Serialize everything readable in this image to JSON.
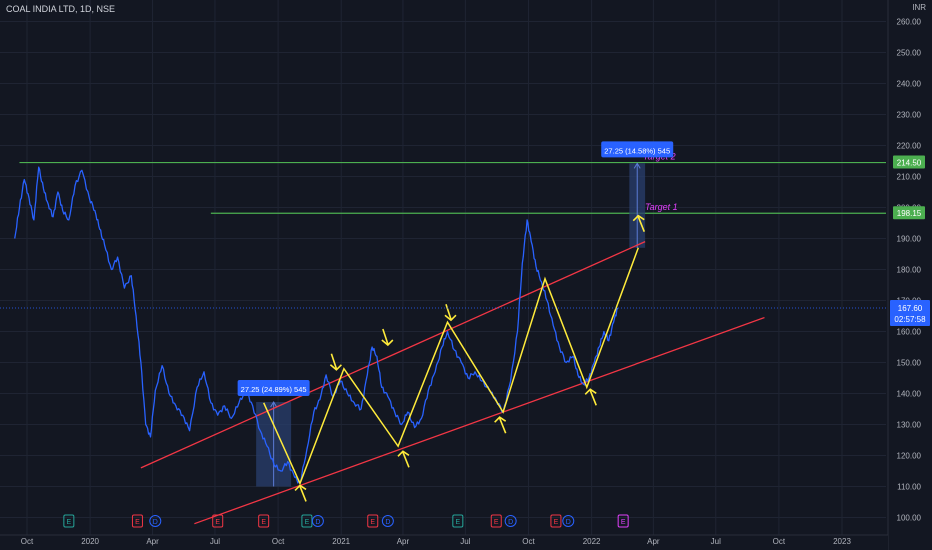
{
  "header": {
    "symbol_title": "COAL INDIA LTD, 1D, NSE",
    "currency": "INR"
  },
  "colors": {
    "background": "#131722",
    "grid": "#1f2433",
    "price_line": "#2962ff",
    "channel": "#f23645",
    "wave": "#ffeb3b",
    "target": "#4caf50",
    "target_label": "#e040fb",
    "measure_fill": "#2a3f6e",
    "badge": "#2962ff",
    "axis_text": "#b2b5be"
  },
  "chart_data": {
    "type": "line",
    "title": "COAL INDIA LTD, 1D, NSE",
    "y_unit": "INR",
    "ylim": [
      97,
      263
    ],
    "y_ticks": [
      100,
      110,
      120,
      130,
      140,
      150,
      160,
      170,
      180,
      190,
      200,
      210,
      220,
      230,
      240,
      250,
      260
    ],
    "y_tick_labels": [
      "100.00",
      "110.00",
      "120.00",
      "130.00",
      "140.00",
      "150.00",
      "160.00",
      "170.00",
      "180.00",
      "190.00",
      "200.00",
      "210.00",
      "220.00",
      "230.00",
      "240.00",
      "250.00",
      "260.00"
    ],
    "x_labels": [
      "Oct",
      "2020",
      "Apr",
      "Jul",
      "Oct",
      "2021",
      "Apr",
      "Jul",
      "Oct",
      "2022",
      "Apr",
      "Jul",
      "Oct",
      "2023"
    ],
    "x_label_dates": [
      "2019-10-01",
      "2020-01-01",
      "2020-04-01",
      "2020-07-01",
      "2020-10-01",
      "2021-01-01",
      "2021-04-01",
      "2021-07-01",
      "2021-10-01",
      "2022-01-01",
      "2022-04-01",
      "2022-07-01",
      "2022-10-01",
      "2023-01-01"
    ],
    "grid": true,
    "series": [
      {
        "points": [
          [
            "2019-09-13",
            190
          ],
          [
            "2019-09-20",
            200
          ],
          [
            "2019-09-27",
            209
          ],
          [
            "2019-10-04",
            203
          ],
          [
            "2019-10-11",
            196
          ],
          [
            "2019-10-18",
            213
          ],
          [
            "2019-10-25",
            206
          ],
          [
            "2019-11-01",
            201
          ],
          [
            "2019-11-08",
            197
          ],
          [
            "2019-11-15",
            205
          ],
          [
            "2019-11-22",
            199
          ],
          [
            "2019-12-01",
            196
          ],
          [
            "2019-12-10",
            207
          ],
          [
            "2019-12-20",
            212
          ],
          [
            "2019-12-31",
            203
          ],
          [
            "2020-01-08",
            199
          ],
          [
            "2020-01-15",
            193
          ],
          [
            "2020-01-22",
            188
          ],
          [
            "2020-02-01",
            180
          ],
          [
            "2020-02-10",
            184
          ],
          [
            "2020-02-20",
            174
          ],
          [
            "2020-03-01",
            178
          ],
          [
            "2020-03-08",
            165
          ],
          [
            "2020-03-15",
            150
          ],
          [
            "2020-03-22",
            130
          ],
          [
            "2020-03-29",
            126
          ],
          [
            "2020-04-05",
            141
          ],
          [
            "2020-04-15",
            149
          ],
          [
            "2020-04-25",
            140
          ],
          [
            "2020-05-05",
            136
          ],
          [
            "2020-05-15",
            133
          ],
          [
            "2020-05-25",
            128
          ],
          [
            "2020-06-05",
            142
          ],
          [
            "2020-06-15",
            147
          ],
          [
            "2020-06-25",
            137
          ],
          [
            "2020-07-05",
            133
          ],
          [
            "2020-07-15",
            136
          ],
          [
            "2020-07-25",
            132
          ],
          [
            "2020-08-05",
            137
          ],
          [
            "2020-08-15",
            141
          ],
          [
            "2020-08-25",
            136
          ],
          [
            "2020-09-05",
            128
          ],
          [
            "2020-09-15",
            123
          ],
          [
            "2020-09-25",
            117
          ],
          [
            "2020-10-05",
            115
          ],
          [
            "2020-10-15",
            118
          ],
          [
            "2020-10-25",
            113
          ],
          [
            "2020-11-02",
            111
          ],
          [
            "2020-11-12",
            122
          ],
          [
            "2020-11-22",
            134
          ],
          [
            "2020-12-01",
            138
          ],
          [
            "2020-12-10",
            146
          ],
          [
            "2020-12-20",
            139
          ],
          [
            "2020-12-31",
            144
          ],
          [
            "2021-01-10",
            140
          ],
          [
            "2021-01-20",
            137
          ],
          [
            "2021-01-30",
            135
          ],
          [
            "2021-02-08",
            146
          ],
          [
            "2021-02-15",
            155
          ],
          [
            "2021-02-22",
            152
          ],
          [
            "2021-03-01",
            142
          ],
          [
            "2021-03-10",
            139
          ],
          [
            "2021-03-20",
            134
          ],
          [
            "2021-03-30",
            130
          ],
          [
            "2021-04-08",
            134
          ],
          [
            "2021-04-18",
            129
          ],
          [
            "2021-04-28",
            132
          ],
          [
            "2021-05-08",
            141
          ],
          [
            "2021-05-18",
            147
          ],
          [
            "2021-05-28",
            155
          ],
          [
            "2021-06-05",
            160
          ],
          [
            "2021-06-15",
            154
          ],
          [
            "2021-06-25",
            150
          ],
          [
            "2021-07-05",
            145
          ],
          [
            "2021-07-15",
            147
          ],
          [
            "2021-07-25",
            144
          ],
          [
            "2021-08-05",
            141
          ],
          [
            "2021-08-15",
            138
          ],
          [
            "2021-08-25",
            134
          ],
          [
            "2021-09-05",
            144
          ],
          [
            "2021-09-15",
            160
          ],
          [
            "2021-09-22",
            182
          ],
          [
            "2021-09-29",
            196
          ],
          [
            "2021-10-05",
            189
          ],
          [
            "2021-10-12",
            181
          ],
          [
            "2021-10-20",
            176
          ],
          [
            "2021-10-28",
            170
          ],
          [
            "2021-11-06",
            162
          ],
          [
            "2021-11-15",
            155
          ],
          [
            "2021-11-25",
            150
          ],
          [
            "2021-12-05",
            152
          ],
          [
            "2021-12-12",
            146
          ],
          [
            "2021-12-20",
            143
          ],
          [
            "2021-12-28",
            145
          ],
          [
            "2022-01-05",
            150
          ],
          [
            "2022-01-12",
            155
          ],
          [
            "2022-01-19",
            160
          ],
          [
            "2022-01-26",
            157
          ],
          [
            "2022-02-02",
            163
          ],
          [
            "2022-02-08",
            167.6
          ]
        ]
      }
    ],
    "current_price_label": "167.60",
    "countdown_label": "02:57:58",
    "target_lines": [
      {
        "value": 214.5,
        "price_label": "214.50",
        "name": "Target 2",
        "start": "2019-09-20"
      },
      {
        "value": 198.15,
        "price_label": "198.15",
        "name": "Target 1",
        "start": "2020-06-25"
      }
    ],
    "channel_lines": [
      {
        "start": [
          "2020-03-15",
          116
        ],
        "end": [
          "2022-03-20",
          189
        ]
      },
      {
        "start": [
          "2020-06-01",
          98
        ],
        "end": [
          "2022-09-10",
          164.5
        ]
      }
    ],
    "wave_path": [
      [
        "2020-09-10",
        137
      ],
      [
        "2020-11-02",
        111
      ],
      [
        "2021-01-05",
        148
      ],
      [
        "2021-03-25",
        123
      ],
      [
        "2021-06-05",
        163
      ],
      [
        "2021-08-25",
        134
      ],
      [
        "2021-10-25",
        177
      ],
      [
        "2021-12-25",
        142
      ],
      [
        "2022-03-10",
        187
      ]
    ],
    "wave_arrows": [
      {
        "at": [
          "2020-11-02",
          111
        ],
        "dir": "up"
      },
      {
        "at": [
          "2020-12-25",
          147
        ],
        "dir": "down"
      },
      {
        "at": [
          "2021-03-10",
          155
        ],
        "dir": "down"
      },
      {
        "at": [
          "2021-04-01",
          122
        ],
        "dir": "up"
      },
      {
        "at": [
          "2021-06-10",
          163
        ],
        "dir": "down"
      },
      {
        "at": [
          "2021-08-20",
          133
        ],
        "dir": "up"
      },
      {
        "at": [
          "2021-12-30",
          142
        ],
        "dir": "up"
      },
      {
        "at": [
          "2022-03-10",
          198
        ],
        "dir": "up"
      }
    ],
    "measurements": [
      {
        "label": "27.25 (24.89%) 545",
        "from": [
          "2020-08-30",
          110
        ],
        "to": [
          "2020-10-20",
          137.25
        ]
      },
      {
        "label": "27.25 (14.58%) 545",
        "from": [
          "2022-02-25",
          187
        ],
        "to": [
          "2022-03-20",
          214.25
        ]
      }
    ],
    "event_markers": [
      {
        "date": "2019-12-01",
        "letter": "E",
        "kind": "earnings"
      },
      {
        "date": "2020-03-10",
        "letter": "E",
        "kind": "earnings-negative"
      },
      {
        "date": "2020-04-05",
        "letter": "D",
        "kind": "dividend"
      },
      {
        "date": "2020-07-05",
        "letter": "E",
        "kind": "earnings-negative"
      },
      {
        "date": "2020-09-10",
        "letter": "E",
        "kind": "earnings-negative"
      },
      {
        "date": "2020-11-12",
        "letter": "E",
        "kind": "earnings"
      },
      {
        "date": "2020-11-28",
        "letter": "D",
        "kind": "dividend"
      },
      {
        "date": "2021-02-16",
        "letter": "E",
        "kind": "earnings-negative"
      },
      {
        "date": "2021-03-10",
        "letter": "D",
        "kind": "dividend"
      },
      {
        "date": "2021-06-20",
        "letter": "E",
        "kind": "earnings"
      },
      {
        "date": "2021-08-15",
        "letter": "E",
        "kind": "earnings-negative"
      },
      {
        "date": "2021-09-05",
        "letter": "D",
        "kind": "dividend"
      },
      {
        "date": "2021-11-10",
        "letter": "E",
        "kind": "earnings-negative"
      },
      {
        "date": "2021-11-28",
        "letter": "D",
        "kind": "dividend"
      },
      {
        "date": "2022-02-16",
        "letter": "E",
        "kind": "earnings-upcoming"
      }
    ]
  }
}
